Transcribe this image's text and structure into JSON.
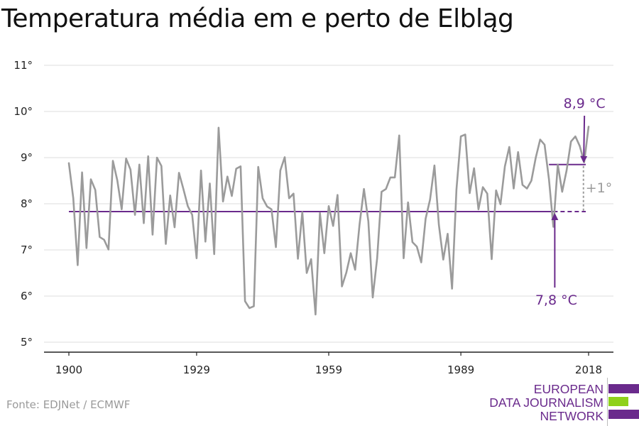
{
  "title": "Temperatura média em e perto de Elbląg",
  "source": "Fonte: EDJNet / ECMWF",
  "logo": {
    "lines": [
      "EUROPEAN",
      "DATA JOURNALISM",
      "NETWORK"
    ],
    "colors": [
      "#6a2a8c",
      "#8fd11b",
      "#6a2a8c"
    ]
  },
  "colors": {
    "series": "#9b9b9b",
    "accent": "#6a2a8c",
    "delta": "#9b9b9b",
    "grid": "#dcdcdc",
    "axis": "#222222"
  },
  "chart_data": {
    "type": "line",
    "title": "Temperatura média em e perto de Elbląg",
    "xlabel": "",
    "ylabel": "",
    "xlim": [
      1900,
      2018
    ],
    "ylim": [
      5,
      11
    ],
    "x_ticks": [
      1900,
      1929,
      1959,
      1989,
      2018
    ],
    "y_ticks": [
      5,
      6,
      7,
      8,
      9,
      10,
      11
    ],
    "y_tick_labels": [
      "5°",
      "6°",
      "7°",
      "8°",
      "9°",
      "10°",
      "11°"
    ],
    "grid": true,
    "series": [
      {
        "x": [
          1900,
          1901,
          1902,
          1903,
          1904,
          1905,
          1906,
          1907,
          1908,
          1909,
          1910,
          1911,
          1912,
          1913,
          1914,
          1915,
          1916,
          1917,
          1918,
          1919,
          1920,
          1921,
          1922,
          1923,
          1924,
          1925,
          1926,
          1927,
          1928,
          1929,
          1930,
          1931,
          1932,
          1933,
          1934,
          1935,
          1936,
          1937,
          1938,
          1939,
          1940,
          1941,
          1942,
          1943,
          1944,
          1945,
          1946,
          1947,
          1948,
          1949,
          1950,
          1951,
          1952,
          1953,
          1954,
          1955,
          1956,
          1957,
          1958,
          1959,
          1960,
          1961,
          1962,
          1963,
          1964,
          1965,
          1966,
          1967,
          1968,
          1969,
          1970,
          1971,
          1972,
          1973,
          1974,
          1975,
          1976,
          1977,
          1978,
          1979,
          1980,
          1981,
          1982,
          1983,
          1984,
          1985,
          1986,
          1987,
          1988,
          1989,
          1990,
          1991,
          1992,
          1993,
          1994,
          1995,
          1996,
          1997,
          1998,
          1999,
          2000,
          2001,
          2002,
          2003,
          2004,
          2005,
          2006,
          2007,
          2008,
          2009,
          2010,
          2011,
          2012,
          2013,
          2014,
          2015,
          2016,
          2017,
          2018
        ],
        "values": [
          8.88,
          8.12,
          6.67,
          8.68,
          7.04,
          8.53,
          8.3,
          7.28,
          7.22,
          7.01,
          8.93,
          8.51,
          7.88,
          8.98,
          8.74,
          7.76,
          8.85,
          7.58,
          9.03,
          7.33,
          9.0,
          8.82,
          7.13,
          8.18,
          7.49,
          8.67,
          8.32,
          7.95,
          7.76,
          6.82,
          8.72,
          7.18,
          8.44,
          6.91,
          9.65,
          8.05,
          8.59,
          8.17,
          8.76,
          8.81,
          5.89,
          5.74,
          5.78,
          8.8,
          8.12,
          7.94,
          7.88,
          7.06,
          8.72,
          9.01,
          8.12,
          8.22,
          6.81,
          7.82,
          6.5,
          6.8,
          5.6,
          7.8,
          6.93,
          7.95,
          7.52,
          8.19,
          6.21,
          6.51,
          6.93,
          6.57,
          7.55,
          8.32,
          7.62,
          5.97,
          6.82,
          8.26,
          8.32,
          8.57,
          8.57,
          9.48,
          6.82,
          8.03,
          7.17,
          7.07,
          6.73,
          7.68,
          8.09,
          8.83,
          7.55,
          6.79,
          7.35,
          6.16,
          8.31,
          9.46,
          9.5,
          8.23,
          8.77,
          7.88,
          8.36,
          8.22,
          6.8,
          8.29,
          7.99,
          8.81,
          9.23,
          8.33,
          9.12,
          8.41,
          8.33,
          8.5,
          9.0,
          9.39,
          9.28,
          8.53,
          7.5,
          8.85,
          8.26,
          8.72,
          9.35,
          9.46,
          9.25,
          8.9,
          9.67
        ]
      }
    ],
    "annotations": {
      "baseline_label": "7,8 °C",
      "recent_label": "8,9 °C",
      "delta_label": "+1°",
      "baseline_value": 7.83,
      "baseline_range": [
        1900,
        2018
      ],
      "recent_value": 8.85,
      "recent_range": [
        2009,
        2018
      ],
      "baseline_arrow_at": 2010,
      "recent_arrow_at": 2017.7,
      "delta_at": 2017.8
    }
  }
}
